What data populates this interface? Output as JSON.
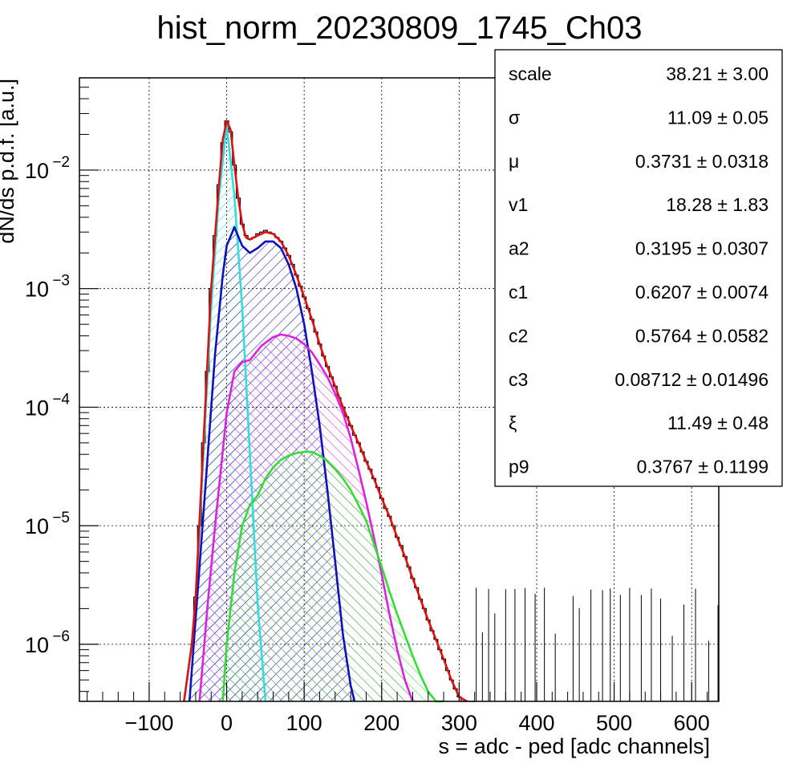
{
  "chart_data": {
    "type": "line",
    "title": "hist_norm_20230809_1745_Ch03",
    "xlabel": "s = adc - ped [adc channels]",
    "ylabel": "dN/ds p.d.f. [a.u.]",
    "xlim": [
      -190,
      635
    ],
    "ylim": [
      3.3e-07,
      0.06
    ],
    "yscale": "log",
    "grid": true,
    "x_ticks": [
      -100,
      0,
      100,
      200,
      300,
      400,
      500,
      600
    ],
    "x_tick_labels": [
      "−100",
      "0",
      "100",
      "200",
      "300",
      "400",
      "500",
      "600"
    ],
    "y_ticks": [
      {
        "value": 1e-06,
        "base": "10",
        "exp": "−6"
      },
      {
        "value": 1e-05,
        "base": "10",
        "exp": "−5"
      },
      {
        "value": 0.0001,
        "base": "10",
        "exp": "−4"
      },
      {
        "value": 0.001,
        "base": "10",
        "exp": "−3"
      },
      {
        "value": 0.01,
        "base": "10",
        "exp": "−2"
      }
    ],
    "series": [
      {
        "color": "#33dddd",
        "fill": true,
        "hatch": "forward",
        "role": "pedestal component",
        "x": [
          -55,
          -45,
          -40,
          -30,
          -20,
          -10,
          0,
          10,
          20,
          30,
          40,
          50
        ],
        "y": [
          3e-07,
          1e-06,
          2.2e-06,
          4e-05,
          0.0007,
          0.006,
          0.024,
          0.006,
          0.0007,
          4e-05,
          2.2e-06,
          3e-07
        ]
      },
      {
        "color": "#1111bb",
        "fill": true,
        "hatch": "forward",
        "role": "1 p.e. component",
        "x": [
          -48,
          -35,
          -25,
          -15,
          -5,
          0,
          10,
          20,
          30,
          40,
          50,
          60,
          70,
          80,
          90,
          100,
          110,
          120,
          130,
          140,
          150,
          160,
          165
        ],
        "y": [
          3e-07,
          4.5e-06,
          3.5e-05,
          0.00028,
          0.0013,
          0.0023,
          0.0033,
          0.0023,
          0.002,
          0.0022,
          0.0025,
          0.0025,
          0.0022,
          0.0016,
          0.001,
          0.0005,
          0.0002,
          7e-05,
          2e-05,
          5e-06,
          1.2e-06,
          4.5e-07,
          3e-07
        ]
      },
      {
        "color": "#dd22dd",
        "fill": true,
        "hatch": "backward",
        "role": "2 p.e. component",
        "x": [
          -35,
          -25,
          -15,
          0,
          10,
          20,
          30,
          45,
          60,
          70,
          80,
          90,
          100,
          110,
          120,
          130,
          140,
          150,
          160,
          170,
          180,
          190,
          200,
          210,
          220,
          230,
          240
        ],
        "y": [
          3e-07,
          2e-06,
          1e-05,
          9e-05,
          0.0002,
          0.00024,
          0.00025,
          0.00033,
          0.00039,
          0.00041,
          0.0004,
          0.00038,
          0.00034,
          0.00029,
          0.00023,
          0.00018,
          0.00013,
          9e-05,
          5.5e-05,
          3e-05,
          1.6e-05,
          8e-06,
          3.9e-06,
          1.8e-06,
          9e-07,
          5e-07,
          3e-07
        ]
      },
      {
        "color": "#33dd33",
        "fill": true,
        "hatch": "backward",
        "role": "3 p.e. component",
        "x": [
          -5,
          0,
          10,
          20,
          30,
          40,
          50,
          60,
          70,
          80,
          90,
          100,
          110,
          120,
          130,
          140,
          150,
          160,
          170,
          180,
          190,
          200,
          210,
          220,
          230,
          240,
          250,
          260,
          270,
          280
        ],
        "y": [
          3e-07,
          1e-06,
          4e-06,
          1e-05,
          1.5e-05,
          1.8e-05,
          2.5e-05,
          3.1e-05,
          3.6e-05,
          3.9e-05,
          4.1e-05,
          4.2e-05,
          4.2e-05,
          3.9e-05,
          3.5e-05,
          3e-05,
          2.5e-05,
          2e-05,
          1.5e-05,
          1.1e-05,
          7e-06,
          4.5e-06,
          2.8e-06,
          1.8e-06,
          1.2e-06,
          8e-07,
          5.5e-07,
          4e-07,
          3.3e-07,
          3e-07
        ]
      },
      {
        "color": "#dd1111",
        "fill": false,
        "role": "total fit",
        "x": [
          -55,
          -45,
          -40,
          -30,
          -20,
          -10,
          -5,
          0,
          5,
          10,
          15,
          20,
          25,
          30,
          40,
          50,
          60,
          70,
          80,
          90,
          100,
          110,
          120,
          130,
          140,
          150,
          160,
          170,
          180,
          190,
          200,
          210,
          220,
          230,
          240,
          250,
          260,
          270,
          280,
          290,
          300,
          310
        ],
        "y": [
          3e-07,
          1e-06,
          2.5e-06,
          5e-05,
          0.001,
          0.0075,
          0.018,
          0.026,
          0.022,
          0.011,
          0.0058,
          0.0035,
          0.0027,
          0.0026,
          0.0028,
          0.003,
          0.0029,
          0.0025,
          0.0019,
          0.0013,
          0.00085,
          0.00055,
          0.00034,
          0.00022,
          0.00015,
          0.0001,
          7e-05,
          5e-05,
          3.5e-05,
          2.5e-05,
          1.7e-05,
          1.2e-05,
          8e-06,
          5.5e-06,
          3.6e-06,
          2.4e-06,
          1.6e-06,
          1.1e-06,
          7.5e-07,
          5e-07,
          3.6e-07,
          3e-07
        ]
      }
    ],
    "histogram": {
      "color": "#000000",
      "x": [
        -45,
        -40,
        -35,
        -30,
        -25,
        -20,
        -15,
        -10,
        -5,
        0,
        5,
        10,
        15,
        20,
        25,
        30,
        35,
        40,
        45,
        50,
        55,
        60,
        65,
        70,
        75,
        80,
        85,
        90,
        95,
        100,
        105,
        110,
        115,
        120,
        125,
        130,
        135,
        140,
        145,
        150,
        155,
        160,
        165,
        170,
        175,
        180,
        185,
        190,
        195,
        200,
        205,
        210,
        215,
        220,
        225,
        230,
        235,
        240,
        245,
        250,
        255,
        260,
        265,
        270,
        275,
        280,
        285,
        290,
        295,
        300,
        305,
        310,
        315,
        320
      ],
      "y": [
        1e-06,
        2.5e-06,
        1e-05,
        5e-05,
        0.0002,
        0.001,
        0.0028,
        0.0075,
        0.017,
        0.026,
        0.021,
        0.011,
        0.0058,
        0.0035,
        0.0028,
        0.0026,
        0.0027,
        0.0029,
        0.003,
        0.0031,
        0.003,
        0.0029,
        0.0027,
        0.0025,
        0.0022,
        0.0019,
        0.0016,
        0.0013,
        0.00105,
        0.00085,
        0.00068,
        0.00055,
        0.00043,
        0.00034,
        0.00027,
        0.00022,
        0.00018,
        0.00015,
        0.00012,
        0.0001,
        8.3e-05,
        7e-05,
        5.8e-05,
        5e-05,
        4.2e-05,
        3.5e-05,
        3e-05,
        2.5e-05,
        2.1e-05,
        1.7e-05,
        1.4e-05,
        1.2e-05,
        1e-05,
        8e-06,
        6.8e-06,
        5.5e-06,
        4.5e-06,
        3.6e-06,
        3e-06,
        2.4e-06,
        2e-06,
        1.6e-06,
        1.3e-06,
        1.1e-06,
        9e-07,
        7.5e-07,
        6e-07,
        5e-07,
        4.2e-07,
        3.6e-07,
        3.3e-07,
        3.1e-07,
        3e-07,
        3e-07
      ],
      "sparse_spikes_x": [
        322,
        330,
        338,
        346,
        360,
        372,
        385,
        398,
        410,
        424,
        447,
        455,
        470,
        485,
        495,
        508,
        520,
        535,
        548,
        560,
        575,
        590,
        605,
        622,
        634
      ]
    },
    "stats_box": [
      {
        "name": "scale",
        "value": "38.21",
        "error": "3.00"
      },
      {
        "name": "σ",
        "value": "11.09",
        "error": "0.05"
      },
      {
        "name": "μ",
        "value": "0.3731",
        "error": "0.0318"
      },
      {
        "name": "v1",
        "value": "18.28",
        "error": "1.83"
      },
      {
        "name": "a2",
        "value": "0.3195",
        "error": "0.0307"
      },
      {
        "name": "c1",
        "value": "0.6207",
        "error": "0.0074"
      },
      {
        "name": "c2",
        "value": "0.5764",
        "error": "0.0582"
      },
      {
        "name": "c3",
        "value": "0.08712",
        "error": "0.01496"
      },
      {
        "name": "ξ",
        "value": "11.49",
        "error": "0.48"
      },
      {
        "name": "p9",
        "value": "0.3767",
        "error": "0.1199"
      }
    ],
    "pm_symbol": "±",
    "legend": "top-right"
  }
}
